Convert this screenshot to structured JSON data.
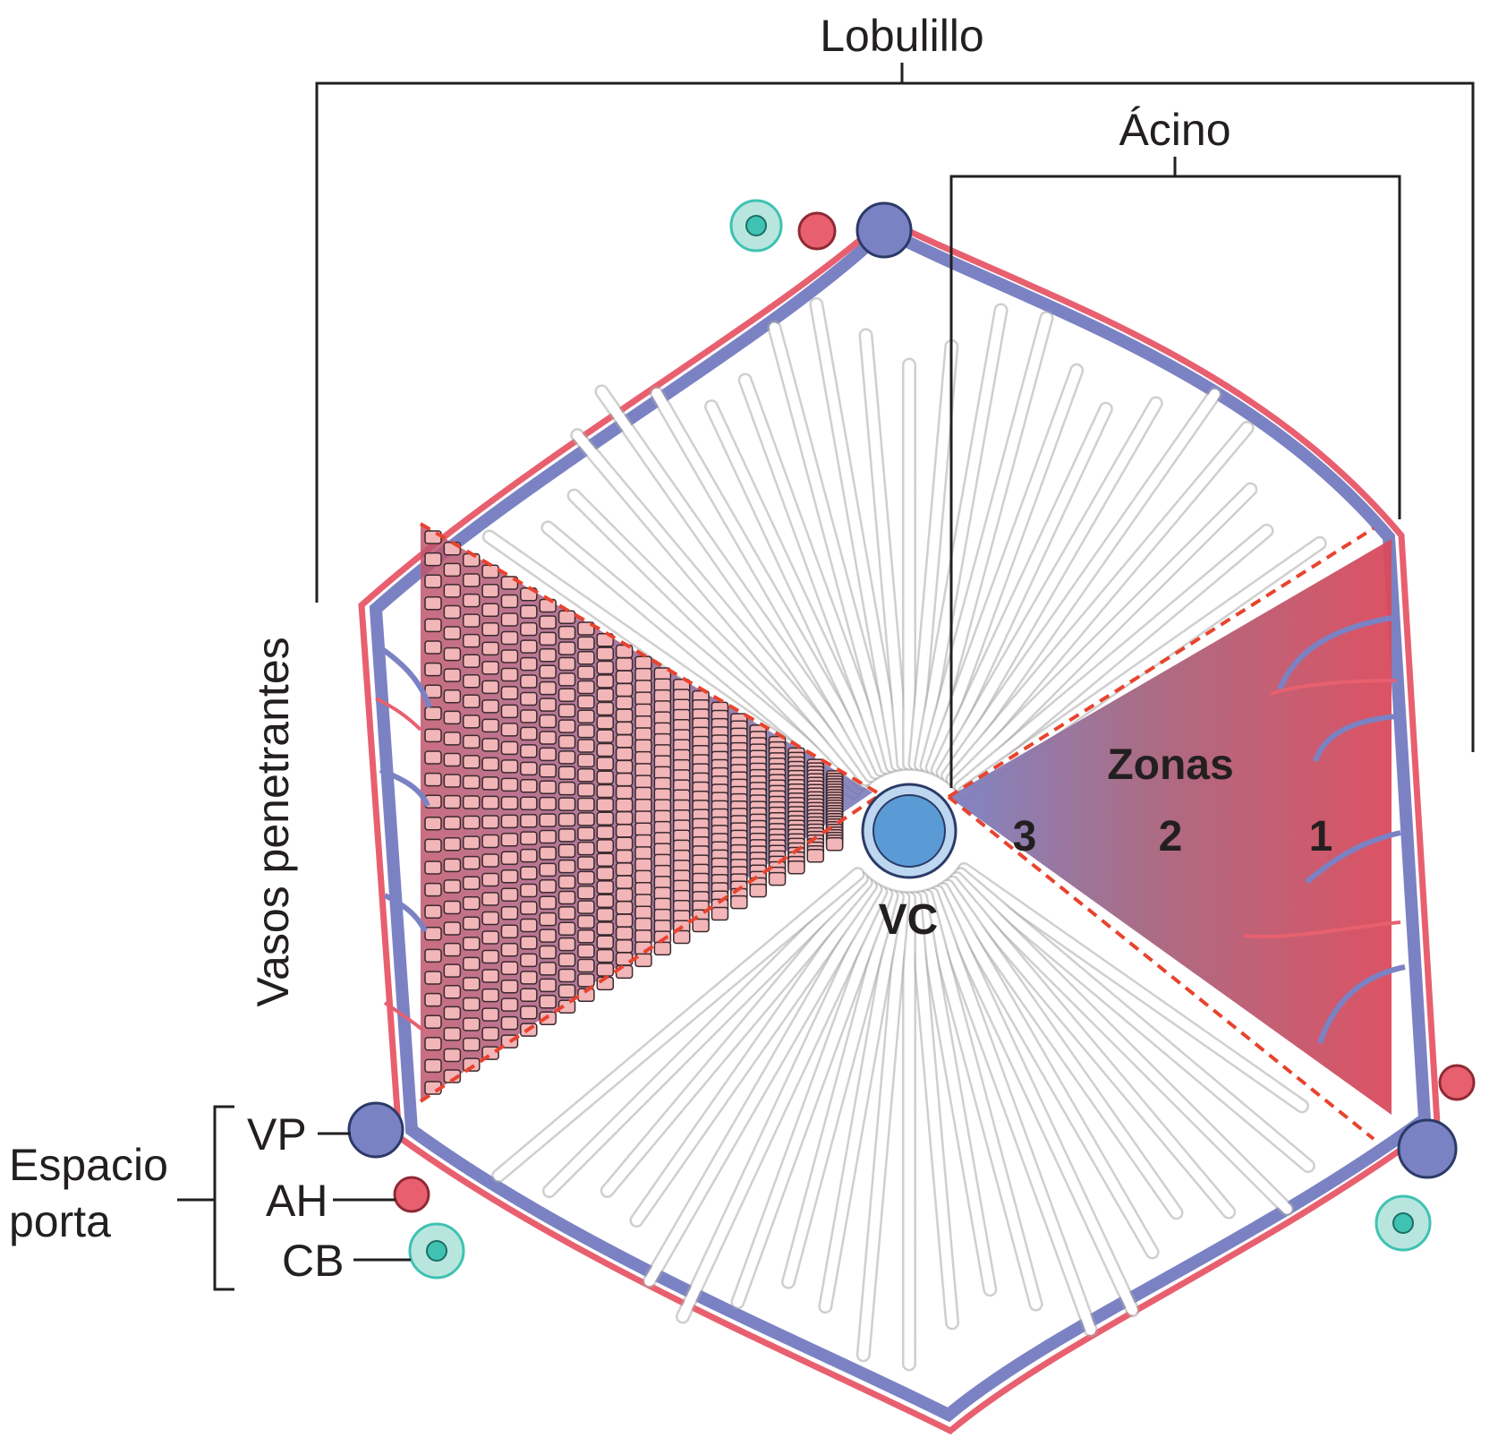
{
  "labels": {
    "lobulillo": "Lobulillo",
    "acino": "Ácino",
    "vasos_penetrantes": "Vasos penetrantes",
    "espacio_porta_line1": "Espacio",
    "espacio_porta_line2": "porta",
    "vp": "VP",
    "ah": "AH",
    "cb": "CB",
    "vc": "VC",
    "zonas": "Zonas",
    "zona_3": "3",
    "zona_2": "2",
    "zona_1": "1"
  },
  "colors": {
    "portal_vein": "#7b82c4",
    "portal_vein_dark": "#4b4f92",
    "hepatic_artery": "#e8606f",
    "hepatic_artery_light": "#f4a4ad",
    "bile_duct": "#3fc2b2",
    "bile_duct_light": "#b8e6df",
    "central_vein": "#5b9bd5",
    "central_vein_ring": "#bcd7ef",
    "zone_red": "#d94a5c",
    "zone_blue": "#7b7fc2",
    "hepatocyte_pink": "#f2b5b8",
    "boundary_dashed": "#e8432e",
    "cord_outline": "#a9a9a9"
  }
}
